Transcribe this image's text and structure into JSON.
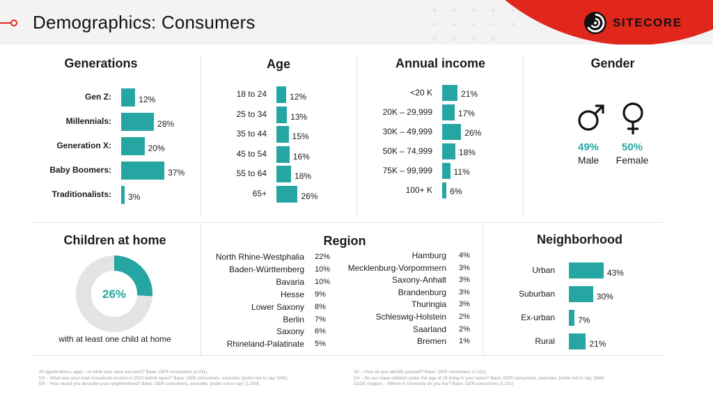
{
  "header": {
    "title": "Demographics: Consumers",
    "logo_text": "SITECORE"
  },
  "generations": {
    "title": "Generations",
    "items": [
      {
        "label": "Gen Z:",
        "value": 12,
        "value_label": "12%"
      },
      {
        "label": "Millennials:",
        "value": 28,
        "value_label": "28%"
      },
      {
        "label": "Generation X:",
        "value": 20,
        "value_label": "20%"
      },
      {
        "label": "Baby Boomers:",
        "value": 37,
        "value_label": "37%"
      },
      {
        "label": "Traditionalists:",
        "value": 3,
        "value_label": "3%"
      }
    ]
  },
  "age": {
    "title": "Age",
    "items": [
      {
        "label": "18 to 24",
        "value": 12,
        "value_label": "12%"
      },
      {
        "label": "25 to 34",
        "value": 13,
        "value_label": "13%"
      },
      {
        "label": "35 to 44",
        "value": 15,
        "value_label": "15%"
      },
      {
        "label": "45 to 54",
        "value": 16,
        "value_label": "16%"
      },
      {
        "label": "55 to 64",
        "value": 18,
        "value_label": "18%"
      },
      {
        "label": "65+",
        "value": 26,
        "value_label": "26%"
      }
    ]
  },
  "income": {
    "title": "Annual income",
    "items": [
      {
        "label": "<20 K",
        "value": 21,
        "value_label": "21%"
      },
      {
        "label": "20K – 29,999",
        "value": 17,
        "value_label": "17%"
      },
      {
        "label": "30K – 49,999",
        "value": 26,
        "value_label": "26%"
      },
      {
        "label": "50K – 74,999",
        "value": 18,
        "value_label": "18%"
      },
      {
        "label": "75K – 99,999",
        "value": 11,
        "value_label": "11%"
      },
      {
        "label": "100+ K",
        "value": 6,
        "value_label": "6%"
      }
    ]
  },
  "gender": {
    "title": "Gender",
    "male": {
      "value": 49,
      "pct": "49%",
      "label": "Male"
    },
    "female": {
      "value": 50,
      "pct": "50%",
      "label": "Female"
    }
  },
  "children": {
    "title": "Children at home",
    "value": 26,
    "value_label": "26%",
    "caption": "with at least one child at home"
  },
  "region": {
    "title": "Region",
    "left": [
      {
        "label": "North Rhine-Westphalia",
        "value_label": "22%"
      },
      {
        "label": "Baden-Württemberg",
        "value_label": "10%"
      },
      {
        "label": "Bavaria",
        "value_label": "10%"
      },
      {
        "label": "Hesse",
        "value_label": "9%"
      },
      {
        "label": "Lower Saxony",
        "value_label": "8%"
      },
      {
        "label": "Berlin",
        "value_label": "7%"
      },
      {
        "label": "Saxony",
        "value_label": "6%"
      },
      {
        "label": "Rhineland-Palatinate",
        "value_label": "5%"
      }
    ],
    "right": [
      {
        "label": "Hamburg",
        "value_label": "4%"
      },
      {
        "label": "Mecklenburg-Vorpommern",
        "value_label": "3%"
      },
      {
        "label": "Saxony-Anhalt",
        "value_label": "3%"
      },
      {
        "label": "Brandenburg",
        "value_label": "3%"
      },
      {
        "label": "Thuringia",
        "value_label": "3%"
      },
      {
        "label": "Schleswig-Holstein",
        "value_label": "2%"
      },
      {
        "label": "Saarland",
        "value_label": "2%"
      },
      {
        "label": "Bremen",
        "value_label": "1%"
      }
    ]
  },
  "neighborhood": {
    "title": "Neighborhood",
    "items": [
      {
        "label": "Urban",
        "value": 43,
        "value_label": "43%"
      },
      {
        "label": "Suburban",
        "value": 30,
        "value_label": "30%"
      },
      {
        "label": "Ex-urban",
        "value": 7,
        "value_label": "7%"
      },
      {
        "label": "Rural",
        "value": 21,
        "value_label": "21%"
      }
    ]
  },
  "footnotes": {
    "left": [
      "S0 (generations, age) – In what year were you born? Base: GER consumers (1,011)",
      "D3 – What was your total household income in 2020 before taxes? Base: GER consumers, excludes 'prefer not to say' (940)",
      "D5 – How would you describe your neighborhood? Base: GER consumers, excludes 'prefer not to say' (1,008)"
    ],
    "right": [
      "S2 – How do you identify yourself? Base: GER consumers (1,011)",
      "D4 – Do you have children under the age of 18 living in your home? Base: GER consumers, excludes 'prefer not to say' (998)",
      "D1DE (region) – Where in Germany do you live? Base: GER consumers (1,011)"
    ]
  },
  "chart_data": [
    {
      "type": "bar",
      "title": "Generations",
      "categories": [
        "Gen Z",
        "Millennials",
        "Generation X",
        "Baby Boomers",
        "Traditionalists"
      ],
      "values": [
        12,
        28,
        20,
        37,
        3
      ]
    },
    {
      "type": "bar",
      "title": "Age",
      "categories": [
        "18 to 24",
        "25 to 34",
        "35 to 44",
        "45 to 54",
        "55 to 64",
        "65+"
      ],
      "values": [
        12,
        13,
        15,
        16,
        18,
        26
      ]
    },
    {
      "type": "bar",
      "title": "Annual income",
      "categories": [
        "<20 K",
        "20K – 29,999",
        "30K – 49,999",
        "50K – 74,999",
        "75K – 99,999",
        "100+ K"
      ],
      "values": [
        21,
        17,
        26,
        18,
        11,
        6
      ]
    },
    {
      "type": "pie",
      "title": "Gender",
      "categories": [
        "Male",
        "Female"
      ],
      "values": [
        49,
        50
      ]
    },
    {
      "type": "pie",
      "title": "Children at home",
      "categories": [
        "with at least one child at home"
      ],
      "values": [
        26
      ]
    },
    {
      "type": "table",
      "title": "Region",
      "categories": [
        "North Rhine-Westphalia",
        "Baden-Württemberg",
        "Bavaria",
        "Hesse",
        "Lower Saxony",
        "Berlin",
        "Saxony",
        "Rhineland-Palatinate",
        "Hamburg",
        "Mecklenburg-Vorpommern",
        "Saxony-Anhalt",
        "Brandenburg",
        "Thuringia",
        "Schleswig-Holstein",
        "Saarland",
        "Bremen"
      ],
      "values": [
        22,
        10,
        10,
        9,
        8,
        7,
        6,
        5,
        4,
        3,
        3,
        3,
        3,
        2,
        2,
        1
      ]
    },
    {
      "type": "bar",
      "title": "Neighborhood",
      "categories": [
        "Urban",
        "Suburban",
        "Ex-urban",
        "Rural"
      ],
      "values": [
        43,
        30,
        7,
        21
      ]
    }
  ],
  "colors": {
    "accent": "#26a6a2",
    "brand_red": "#e1261c",
    "donut_rest": "#e4e4e4"
  }
}
